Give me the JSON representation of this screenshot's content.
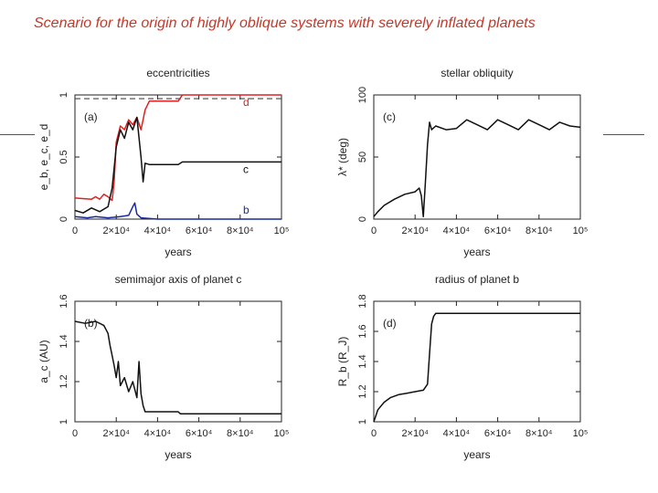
{
  "slide": {
    "title": "Scenario for the origin of highly oblique systems with severely inflated planets"
  },
  "chart_data": [
    {
      "type": "line",
      "title": "eccentricities",
      "panel_label": "(a)",
      "xlabel": "years",
      "ylabel": "e_b, e_c, e_d",
      "xlim": [
        0,
        100000
      ],
      "ylim": [
        0,
        1
      ],
      "x_ticks": [
        {
          "value": 0,
          "label": "0"
        },
        {
          "value": 20000,
          "label": "2×10⁴"
        },
        {
          "value": 40000,
          "label": "4×10⁴"
        },
        {
          "value": 60000,
          "label": "6×10⁴"
        },
        {
          "value": 80000,
          "label": "8×10⁴"
        },
        {
          "value": 100000,
          "label": "10⁵"
        }
      ],
      "y_ticks": [
        {
          "value": 0,
          "label": "0"
        },
        {
          "value": 0.5,
          "label": "0.5"
        },
        {
          "value": 1,
          "label": "1"
        }
      ],
      "reference_lines": [
        {
          "y": 0.97,
          "style": "dashed",
          "color": "#444444"
        }
      ],
      "series": [
        {
          "name": "d",
          "color": "#e02020",
          "x": [
            0,
            8000,
            10000,
            12000,
            14000,
            16000,
            18000,
            19000,
            20000,
            22000,
            24000,
            26000,
            28000,
            30000,
            32000,
            34000,
            36000,
            50000,
            52000,
            100000
          ],
          "y": [
            0.17,
            0.16,
            0.18,
            0.16,
            0.2,
            0.18,
            0.15,
            0.3,
            0.62,
            0.75,
            0.72,
            0.8,
            0.76,
            0.82,
            0.72,
            0.88,
            0.95,
            0.95,
            1.0,
            1.0
          ]
        },
        {
          "name": "c",
          "color": "#111111",
          "x": [
            0,
            4000,
            8000,
            12000,
            16000,
            18000,
            20000,
            22000,
            24000,
            26000,
            28000,
            30000,
            32000,
            33000,
            34000,
            36000,
            50000,
            52000,
            100000
          ],
          "y": [
            0.07,
            0.05,
            0.09,
            0.06,
            0.1,
            0.25,
            0.58,
            0.72,
            0.65,
            0.78,
            0.72,
            0.82,
            0.5,
            0.3,
            0.45,
            0.44,
            0.44,
            0.46,
            0.46
          ]
        },
        {
          "name": "b",
          "color": "#1a2a9a",
          "x": [
            0,
            6000,
            10000,
            16000,
            22000,
            26000,
            28000,
            29000,
            30000,
            32000,
            40000,
            100000
          ],
          "y": [
            0.02,
            0.01,
            0.02,
            0.01,
            0.02,
            0.03,
            0.1,
            0.13,
            0.04,
            0.01,
            0.0,
            0.0
          ]
        }
      ]
    },
    {
      "type": "line",
      "title": "stellar obliquity",
      "panel_label": "(c)",
      "xlabel": "years",
      "ylabel": "λ* (deg)",
      "xlim": [
        0,
        100000
      ],
      "ylim": [
        0,
        100
      ],
      "x_ticks": [
        {
          "value": 0,
          "label": "0"
        },
        {
          "value": 20000,
          "label": "2×10⁴"
        },
        {
          "value": 40000,
          "label": "4×10⁴"
        },
        {
          "value": 60000,
          "label": "6×10⁴"
        },
        {
          "value": 80000,
          "label": "8×10⁴"
        },
        {
          "value": 100000,
          "label": "10⁵"
        }
      ],
      "y_ticks": [
        {
          "value": 0,
          "label": "0"
        },
        {
          "value": 50,
          "label": "50"
        },
        {
          "value": 100,
          "label": "100"
        }
      ],
      "series": [
        {
          "name": "",
          "color": "#111111",
          "x": [
            0,
            2000,
            5000,
            10000,
            15000,
            20000,
            22000,
            23000,
            24000,
            25000,
            26000,
            27000,
            28000,
            30000,
            35000,
            40000,
            45000,
            50000,
            55000,
            60000,
            65000,
            70000,
            75000,
            80000,
            85000,
            90000,
            95000,
            100000
          ],
          "y": [
            2,
            6,
            11,
            16,
            20,
            22,
            25,
            19,
            2,
            30,
            60,
            78,
            72,
            75,
            72,
            73,
            80,
            76,
            72,
            80,
            76,
            72,
            80,
            76,
            72,
            78,
            75,
            74
          ]
        }
      ]
    },
    {
      "type": "line",
      "title": "semimajor axis of planet c",
      "panel_label": "(b)",
      "xlabel": "years",
      "ylabel": "a_c (AU)",
      "xlim": [
        0,
        100000
      ],
      "ylim": [
        1,
        1.6
      ],
      "x_ticks": [
        {
          "value": 0,
          "label": "0"
        },
        {
          "value": 20000,
          "label": "2×10⁴"
        },
        {
          "value": 40000,
          "label": "4×10⁴"
        },
        {
          "value": 60000,
          "label": "6×10⁴"
        },
        {
          "value": 80000,
          "label": "8×10⁴"
        },
        {
          "value": 100000,
          "label": "10⁵"
        }
      ],
      "y_ticks": [
        {
          "value": 1,
          "label": "1"
        },
        {
          "value": 1.2,
          "label": "1.2"
        },
        {
          "value": 1.4,
          "label": "1.4"
        },
        {
          "value": 1.6,
          "label": "1.6"
        }
      ],
      "series": [
        {
          "name": "",
          "color": "#111111",
          "x": [
            0,
            5000,
            10000,
            14000,
            16000,
            17000,
            18000,
            19000,
            20000,
            21000,
            22000,
            24000,
            26000,
            28000,
            30000,
            31000,
            32000,
            33000,
            34000,
            36000,
            50000,
            51000,
            100000
          ],
          "y": [
            1.5,
            1.49,
            1.5,
            1.48,
            1.44,
            1.38,
            1.33,
            1.28,
            1.22,
            1.3,
            1.18,
            1.22,
            1.15,
            1.2,
            1.12,
            1.3,
            1.14,
            1.08,
            1.05,
            1.05,
            1.05,
            1.04,
            1.04
          ]
        }
      ]
    },
    {
      "type": "line",
      "title": "radius of planet b",
      "panel_label": "(d)",
      "xlabel": "years",
      "ylabel": "R_b (R_J)",
      "xlim": [
        0,
        100000
      ],
      "ylim": [
        1,
        1.8
      ],
      "x_ticks": [
        {
          "value": 0,
          "label": "0"
        },
        {
          "value": 20000,
          "label": "2×10⁴"
        },
        {
          "value": 40000,
          "label": "4×10⁴"
        },
        {
          "value": 60000,
          "label": "6×10⁴"
        },
        {
          "value": 80000,
          "label": "8×10⁴"
        },
        {
          "value": 100000,
          "label": "10⁵"
        }
      ],
      "y_ticks": [
        {
          "value": 1,
          "label": "1"
        },
        {
          "value": 1.2,
          "label": "1.2"
        },
        {
          "value": 1.4,
          "label": "1.4"
        },
        {
          "value": 1.6,
          "label": "1.6"
        },
        {
          "value": 1.8,
          "label": "1.8"
        }
      ],
      "series": [
        {
          "name": "",
          "color": "#111111",
          "x": [
            0,
            2000,
            5000,
            8000,
            12000,
            16000,
            20000,
            24000,
            26000,
            27000,
            28000,
            29000,
            30000,
            40000,
            60000,
            80000,
            100000
          ],
          "y": [
            1.0,
            1.08,
            1.13,
            1.16,
            1.18,
            1.19,
            1.2,
            1.21,
            1.25,
            1.45,
            1.65,
            1.7,
            1.72,
            1.72,
            1.72,
            1.72,
            1.72
          ]
        }
      ]
    }
  ]
}
